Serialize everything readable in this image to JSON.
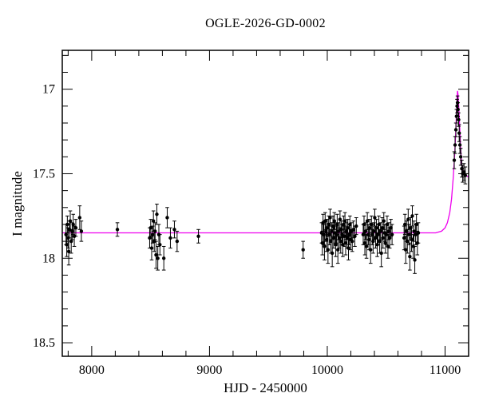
{
  "chart_data": {
    "type": "scatter",
    "title": "OGLE-2026-GD-0002",
    "xlabel": "HJD - 2450000",
    "ylabel": "I magnitude",
    "xlim": [
      7750,
      11200
    ],
    "ylim_top": 16.77,
    "ylim_bottom": 18.58,
    "y_inverted": true,
    "x_major_ticks": [
      8000,
      9000,
      10000,
      11000
    ],
    "x_minor_step": 200,
    "y_major_ticks": [
      17,
      17.5,
      18,
      18.5
    ],
    "y_minor_step": 0.1,
    "point_color": "#000000",
    "model_color": "#ee00ee",
    "legend": "none",
    "grid": false,
    "points": [
      [
        7782,
        17.86,
        0.06
      ],
      [
        7788,
        17.92,
        0.07
      ],
      [
        7793,
        17.8,
        0.05
      ],
      [
        7799,
        17.88,
        0.06
      ],
      [
        7805,
        17.96,
        0.08
      ],
      [
        7811,
        17.83,
        0.05
      ],
      [
        7818,
        17.78,
        0.06
      ],
      [
        7826,
        17.9,
        0.07
      ],
      [
        7834,
        17.84,
        0.05
      ],
      [
        7843,
        17.8,
        0.06
      ],
      [
        7852,
        17.87,
        0.06
      ],
      [
        7865,
        17.82,
        0.05
      ],
      [
        7898,
        17.76,
        0.07
      ],
      [
        7912,
        17.84,
        0.06
      ],
      [
        8218,
        17.83,
        0.04
      ],
      [
        8492,
        17.88,
        0.06
      ],
      [
        8501,
        17.82,
        0.05
      ],
      [
        8509,
        17.94,
        0.07
      ],
      [
        8517,
        17.86,
        0.05
      ],
      [
        8524,
        17.78,
        0.06
      ],
      [
        8531,
        17.9,
        0.06
      ],
      [
        8538,
        17.84,
        0.05
      ],
      [
        8546,
        17.98,
        0.08
      ],
      [
        8553,
        17.74,
        0.06
      ],
      [
        8561,
        18.0,
        0.07
      ],
      [
        8570,
        17.86,
        0.06
      ],
      [
        8579,
        17.92,
        0.06
      ],
      [
        8612,
        18.0,
        0.07
      ],
      [
        8641,
        17.76,
        0.06
      ],
      [
        8668,
        17.88,
        0.06
      ],
      [
        8702,
        17.83,
        0.05
      ],
      [
        8725,
        17.9,
        0.06
      ],
      [
        8906,
        17.87,
        0.04
      ],
      [
        9795,
        17.95,
        0.05
      ],
      [
        9952,
        17.85,
        0.06
      ],
      [
        9958,
        17.91,
        0.07
      ],
      [
        9964,
        17.79,
        0.05
      ],
      [
        9970,
        17.86,
        0.06
      ],
      [
        9976,
        17.93,
        0.08
      ],
      [
        9982,
        17.78,
        0.05
      ],
      [
        9988,
        17.84,
        0.06
      ],
      [
        9994,
        17.89,
        0.07
      ],
      [
        10000,
        17.82,
        0.05
      ],
      [
        10006,
        17.95,
        0.08
      ],
      [
        10012,
        17.8,
        0.05
      ],
      [
        10018,
        17.86,
        0.06
      ],
      [
        10024,
        17.76,
        0.05
      ],
      [
        10030,
        17.9,
        0.07
      ],
      [
        10036,
        17.84,
        0.05
      ],
      [
        10042,
        17.97,
        0.08
      ],
      [
        10048,
        17.81,
        0.06
      ],
      [
        10054,
        17.88,
        0.06
      ],
      [
        10060,
        17.78,
        0.05
      ],
      [
        10066,
        17.85,
        0.06
      ],
      [
        10072,
        17.92,
        0.07
      ],
      [
        10078,
        17.86,
        0.05
      ],
      [
        10084,
        17.8,
        0.06
      ],
      [
        10090,
        17.95,
        0.08
      ],
      [
        10096,
        17.84,
        0.05
      ],
      [
        10102,
        17.88,
        0.06
      ],
      [
        10108,
        17.77,
        0.05
      ],
      [
        10114,
        17.9,
        0.07
      ],
      [
        10120,
        17.83,
        0.05
      ],
      [
        10126,
        17.86,
        0.06
      ],
      [
        10132,
        17.92,
        0.07
      ],
      [
        10138,
        17.8,
        0.05
      ],
      [
        10144,
        17.87,
        0.06
      ],
      [
        10150,
        17.78,
        0.05
      ],
      [
        10156,
        17.91,
        0.07
      ],
      [
        10162,
        17.84,
        0.05
      ],
      [
        10168,
        17.88,
        0.06
      ],
      [
        10174,
        17.82,
        0.05
      ],
      [
        10180,
        17.94,
        0.07
      ],
      [
        10186,
        17.86,
        0.06
      ],
      [
        10192,
        17.8,
        0.05
      ],
      [
        10198,
        17.89,
        0.06
      ],
      [
        10204,
        17.84,
        0.05
      ],
      [
        10212,
        17.9,
        0.06
      ],
      [
        10222,
        17.83,
        0.05
      ],
      [
        10234,
        17.87,
        0.06
      ],
      [
        10246,
        17.81,
        0.05
      ],
      [
        10305,
        17.86,
        0.06
      ],
      [
        10312,
        17.8,
        0.05
      ],
      [
        10319,
        17.91,
        0.07
      ],
      [
        10326,
        17.84,
        0.05
      ],
      [
        10333,
        17.93,
        0.07
      ],
      [
        10340,
        17.78,
        0.05
      ],
      [
        10347,
        17.86,
        0.06
      ],
      [
        10354,
        17.89,
        0.06
      ],
      [
        10361,
        17.82,
        0.05
      ],
      [
        10368,
        17.95,
        0.08
      ],
      [
        10375,
        17.8,
        0.05
      ],
      [
        10382,
        17.86,
        0.06
      ],
      [
        10389,
        17.9,
        0.07
      ],
      [
        10396,
        17.84,
        0.05
      ],
      [
        10403,
        17.76,
        0.05
      ],
      [
        10410,
        17.88,
        0.06
      ],
      [
        10417,
        17.82,
        0.05
      ],
      [
        10424,
        17.92,
        0.07
      ],
      [
        10431,
        17.86,
        0.06
      ],
      [
        10438,
        17.8,
        0.05
      ],
      [
        10445,
        17.9,
        0.07
      ],
      [
        10452,
        17.84,
        0.05
      ],
      [
        10459,
        17.97,
        0.08
      ],
      [
        10466,
        17.82,
        0.06
      ],
      [
        10473,
        17.88,
        0.06
      ],
      [
        10480,
        17.78,
        0.05
      ],
      [
        10487,
        17.85,
        0.05
      ],
      [
        10494,
        17.91,
        0.06
      ],
      [
        10501,
        17.86,
        0.06
      ],
      [
        10508,
        17.8,
        0.05
      ],
      [
        10515,
        17.93,
        0.07
      ],
      [
        10522,
        17.84,
        0.05
      ],
      [
        10530,
        17.88,
        0.06
      ],
      [
        10540,
        17.82,
        0.05
      ],
      [
        10550,
        17.86,
        0.06
      ],
      [
        10652,
        17.88,
        0.07
      ],
      [
        10659,
        17.8,
        0.06
      ],
      [
        10666,
        17.95,
        0.08
      ],
      [
        10673,
        17.84,
        0.06
      ],
      [
        10680,
        17.9,
        0.07
      ],
      [
        10687,
        17.77,
        0.06
      ],
      [
        10694,
        17.86,
        0.06
      ],
      [
        10701,
        17.99,
        0.08
      ],
      [
        10708,
        17.82,
        0.06
      ],
      [
        10715,
        17.89,
        0.07
      ],
      [
        10722,
        17.75,
        0.06
      ],
      [
        10729,
        17.93,
        0.07
      ],
      [
        10736,
        17.84,
        0.06
      ],
      [
        10743,
        18.01,
        0.08
      ],
      [
        10750,
        17.86,
        0.06
      ],
      [
        10757,
        17.8,
        0.06
      ],
      [
        10765,
        17.91,
        0.07
      ],
      [
        10773,
        17.85,
        0.06
      ],
      [
        11078,
        17.42,
        0.05
      ],
      [
        11085,
        17.33,
        0.05
      ],
      [
        11092,
        17.24,
        0.04
      ],
      [
        11097,
        17.16,
        0.04
      ],
      [
        11102,
        17.1,
        0.04
      ],
      [
        11106,
        17.08,
        0.04
      ],
      [
        11110,
        17.12,
        0.04
      ],
      [
        11115,
        17.18,
        0.04
      ],
      [
        11120,
        17.26,
        0.05
      ],
      [
        11126,
        17.33,
        0.05
      ],
      [
        11133,
        17.4,
        0.05
      ],
      [
        11142,
        17.47,
        0.05
      ],
      [
        11150,
        17.5,
        0.05
      ],
      [
        11160,
        17.49,
        0.05
      ],
      [
        11172,
        17.51,
        0.05
      ]
    ],
    "model_curve": [
      [
        7750,
        17.85
      ],
      [
        10800,
        17.85
      ],
      [
        10920,
        17.85
      ],
      [
        10970,
        17.84
      ],
      [
        11000,
        17.82
      ],
      [
        11020,
        17.79
      ],
      [
        11040,
        17.73
      ],
      [
        11055,
        17.65
      ],
      [
        11070,
        17.52
      ],
      [
        11082,
        17.38
      ],
      [
        11090,
        17.26
      ],
      [
        11097,
        17.14
      ],
      [
        11102,
        17.05
      ],
      [
        11106,
        17.01
      ],
      [
        11110,
        17.03
      ],
      [
        11116,
        17.1
      ],
      [
        11124,
        17.22
      ],
      [
        11132,
        17.35
      ],
      [
        11142,
        17.45
      ],
      [
        11155,
        17.5
      ],
      [
        11200,
        17.52
      ]
    ]
  }
}
